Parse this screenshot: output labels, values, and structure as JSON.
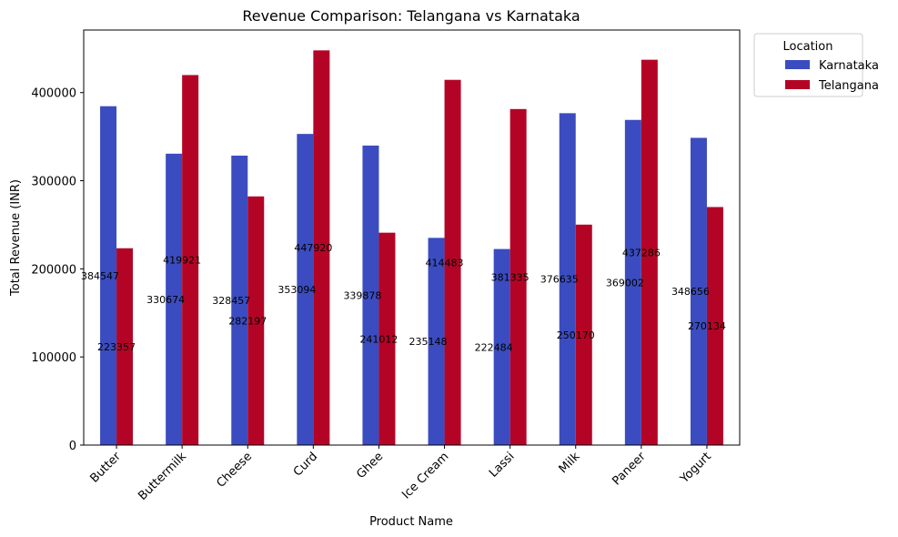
{
  "chart_data": {
    "type": "bar",
    "title": "Revenue Comparison: Telangana vs Karnataka",
    "xlabel": "Product Name",
    "ylabel": "Total Revenue (INR)",
    "categories": [
      "Butter",
      "Buttermilk",
      "Cheese",
      "Curd",
      "Ghee",
      "Ice Cream",
      "Lassi",
      "Milk",
      "Paneer",
      "Yogurt"
    ],
    "series": [
      {
        "name": "Karnataka",
        "color": "#3b4cc0",
        "values": [
          384547,
          330674,
          328457,
          353094,
          339878,
          235148,
          222484,
          376635,
          369002,
          348656
        ],
        "labels": [
          "384547",
          "330674",
          "328457",
          "353094",
          "339878",
          "235148",
          "222484",
          "376635",
          "369002",
          "348656"
        ]
      },
      {
        "name": "Telangana",
        "color": "#b40426",
        "values": [
          223357,
          419921,
          282197,
          447920,
          241012,
          414483,
          381335,
          250170,
          437286,
          270134
        ],
        "labels": [
          "223357",
          "419921",
          "282197",
          "447920",
          "241012",
          "414483",
          "381335",
          "250170",
          "437286",
          "270134"
        ]
      }
    ],
    "ylim": [
      0,
      471000
    ],
    "yticks": [
      0,
      100000,
      200000,
      300000,
      400000
    ],
    "ytick_labels": [
      "0",
      "100000",
      "200000",
      "300000",
      "400000"
    ],
    "legend": {
      "title": "Location",
      "placement": "outside-top-right"
    },
    "grid": false
  }
}
